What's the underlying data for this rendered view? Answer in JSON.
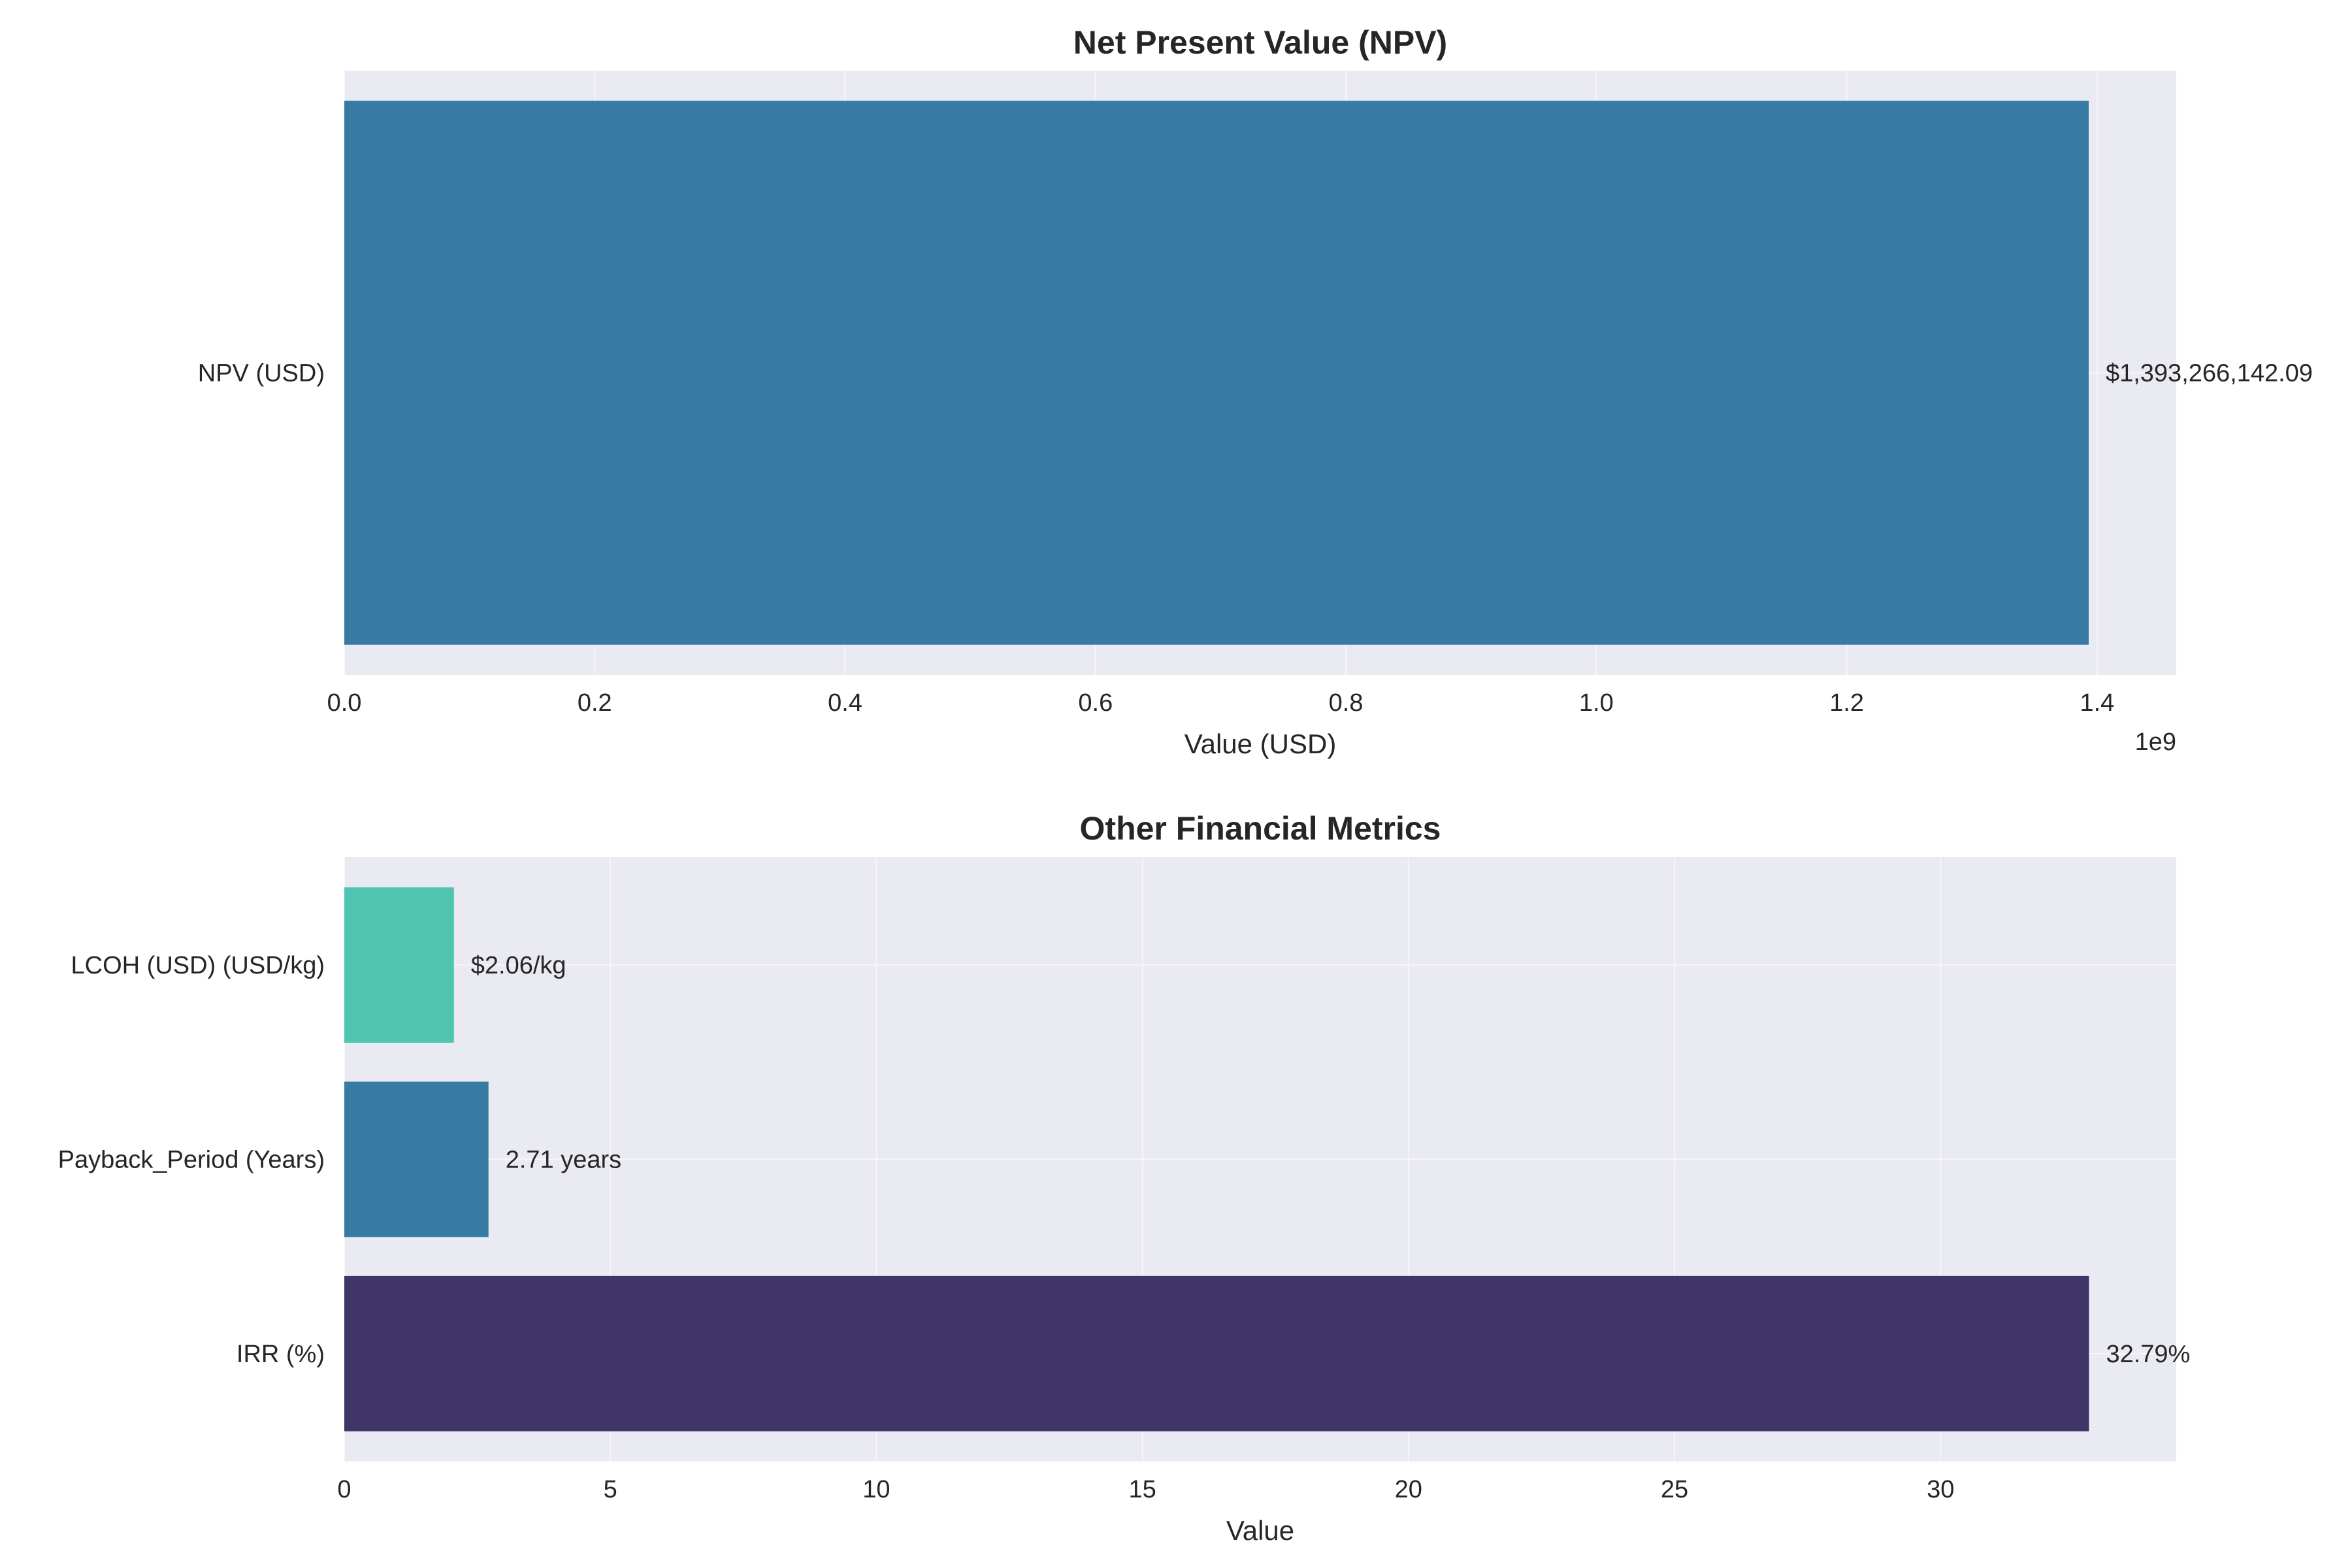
{
  "chart_data": [
    {
      "type": "bar",
      "orientation": "horizontal",
      "title": "Net Present Value (NPV)",
      "xlabel": "Value (USD)",
      "ylabel": "",
      "offset_text": "1e9",
      "categories": [
        "NPV (USD)"
      ],
      "values": [
        1393266142.09
      ],
      "value_labels": [
        "$1,393,266,142.09"
      ],
      "colors": [
        "#377ba4"
      ],
      "xlim": [
        0,
        1.4632
      ],
      "xscale_multiplier": 1000000000,
      "xticks": [
        0.0,
        0.2,
        0.4,
        0.6,
        0.8,
        1.0,
        1.2,
        1.4
      ],
      "xtick_labels": [
        "0.0",
        "0.2",
        "0.4",
        "0.6",
        "0.8",
        "1.0",
        "1.2",
        "1.4"
      ],
      "grid": true,
      "background": "#eaeaf2"
    },
    {
      "type": "bar",
      "orientation": "horizontal",
      "title": "Other Financial Metrics",
      "xlabel": "Value",
      "ylabel": "",
      "categories": [
        "LCOH (USD) (USD/kg)",
        "Payback_Period (Years)",
        "IRR (%)"
      ],
      "values": [
        2.06,
        2.71,
        32.79
      ],
      "value_labels": [
        "$2.06/kg",
        "2.71 years",
        "32.79%"
      ],
      "colors": [
        "#4fc4b0",
        "#377ba4",
        "#3f3568"
      ],
      "xlim": [
        0,
        34.43
      ],
      "xticks": [
        0,
        5,
        10,
        15,
        20,
        25,
        30
      ],
      "xtick_labels": [
        "0",
        "5",
        "10",
        "15",
        "20",
        "25",
        "30"
      ],
      "grid": true,
      "background": "#eaeaf2"
    }
  ]
}
